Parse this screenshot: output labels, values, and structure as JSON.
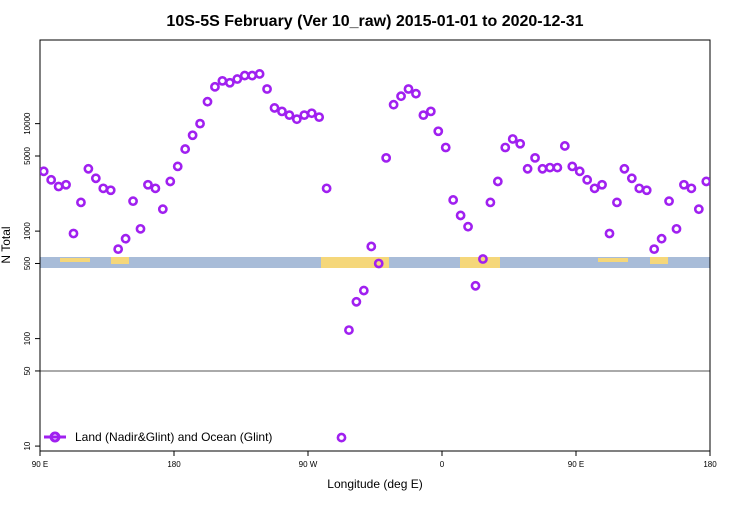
{
  "chart_data": {
    "type": "scatter",
    "title": "10S-5S February (Ver 10_raw)   2015-01-01 to 2020-12-31",
    "xlabel": "Longitude (deg E)",
    "ylabel": "N Total",
    "x_scale": "linear",
    "y_scale": "log",
    "xlim": [
      90,
      540
    ],
    "ylim": [
      9,
      60000
    ],
    "x_ticks": [
      {
        "value": 90,
        "label": "90 E"
      },
      {
        "value": 180,
        "label": "180"
      },
      {
        "value": 270,
        "label": "90 W"
      },
      {
        "value": 360,
        "label": "0"
      },
      {
        "value": 450,
        "label": "90 E"
      },
      {
        "value": 540,
        "label": "180"
      }
    ],
    "y_ticks": [
      {
        "value": 10,
        "label": "10"
      },
      {
        "value": 50,
        "label": "50"
      },
      {
        "value": 100,
        "label": "100"
      },
      {
        "value": 500,
        "label": "500"
      },
      {
        "value": 1000,
        "label": "1000"
      },
      {
        "value": 5000,
        "label": "5000"
      },
      {
        "value": 10000,
        "label": "10000"
      }
    ],
    "reference_lines": [
      50
    ],
    "legend_position": "bottom-left",
    "point_color": "#a020f0",
    "map_strip_colors": {
      "ocean": "#a8bcd8",
      "land": "#f5d77a"
    },
    "series": [
      {
        "name": "Land (Nadir&Glint) and Ocean (Glint)",
        "points": [
          [
            92.5,
            3600
          ],
          [
            97.5,
            3000
          ],
          [
            102.5,
            2600
          ],
          [
            107.5,
            2700
          ],
          [
            112.5,
            950
          ],
          [
            117.5,
            1850
          ],
          [
            122.5,
            3800
          ],
          [
            127.5,
            3100
          ],
          [
            132.5,
            2500
          ],
          [
            137.5,
            2400
          ],
          [
            142.5,
            680
          ],
          [
            147.5,
            850
          ],
          [
            152.5,
            1900
          ],
          [
            157.5,
            1050
          ],
          [
            162.5,
            2700
          ],
          [
            167.5,
            2500
          ],
          [
            172.5,
            1600
          ],
          [
            177.5,
            2900
          ],
          [
            182.5,
            4000
          ],
          [
            187.5,
            5800
          ],
          [
            192.5,
            7800
          ],
          [
            197.5,
            10000
          ],
          [
            202.5,
            16000
          ],
          [
            207.5,
            22000
          ],
          [
            212.5,
            25000
          ],
          [
            217.5,
            24000
          ],
          [
            222.5,
            26000
          ],
          [
            227.5,
            28000
          ],
          [
            232.5,
            28000
          ],
          [
            237.5,
            29000
          ],
          [
            242.5,
            21000
          ],
          [
            247.5,
            14000
          ],
          [
            252.5,
            13000
          ],
          [
            257.5,
            12000
          ],
          [
            262.5,
            11000
          ],
          [
            267.5,
            12000
          ],
          [
            272.5,
            12500
          ],
          [
            277.5,
            11500
          ],
          [
            282.5,
            2500
          ],
          [
            297.5,
            120
          ],
          [
            302.5,
            220
          ],
          [
            307.5,
            280
          ],
          [
            312.5,
            720
          ],
          [
            317.5,
            500
          ],
          [
            322.5,
            4800
          ],
          [
            327.5,
            15000
          ],
          [
            332.5,
            18000
          ],
          [
            337.5,
            21000
          ],
          [
            342.5,
            19000
          ],
          [
            347.5,
            12000
          ],
          [
            352.5,
            13000
          ],
          [
            357.5,
            8500
          ],
          [
            362.5,
            6000
          ],
          [
            367.5,
            1950
          ],
          [
            372.5,
            1400
          ],
          [
            377.5,
            1100
          ],
          [
            382.5,
            310
          ],
          [
            387.5,
            550
          ],
          [
            392.5,
            1850
          ],
          [
            397.5,
            2900
          ],
          [
            402.5,
            6000
          ],
          [
            407.5,
            7200
          ],
          [
            412.5,
            6500
          ],
          [
            417.5,
            3800
          ],
          [
            422.5,
            4800
          ],
          [
            427.5,
            3800
          ],
          [
            432.5,
            3900
          ],
          [
            437.5,
            3900
          ],
          [
            442.5,
            6200
          ],
          [
            447.5,
            4000
          ],
          [
            452.5,
            3600
          ],
          [
            457.5,
            3000
          ],
          [
            462.5,
            2500
          ],
          [
            467.5,
            2700
          ],
          [
            472.5,
            950
          ],
          [
            477.5,
            1850
          ],
          [
            482.5,
            3800
          ],
          [
            487.5,
            3100
          ],
          [
            492.5,
            2500
          ],
          [
            497.5,
            2400
          ],
          [
            502.5,
            680
          ],
          [
            507.5,
            850
          ],
          [
            512.5,
            1900
          ],
          [
            517.5,
            1050
          ],
          [
            522.5,
            2700
          ],
          [
            527.5,
            2500
          ],
          [
            532.5,
            1600
          ],
          [
            537.5,
            2900
          ]
        ]
      }
    ],
    "legend_outlier_point": [
      292.5,
      12
    ]
  }
}
